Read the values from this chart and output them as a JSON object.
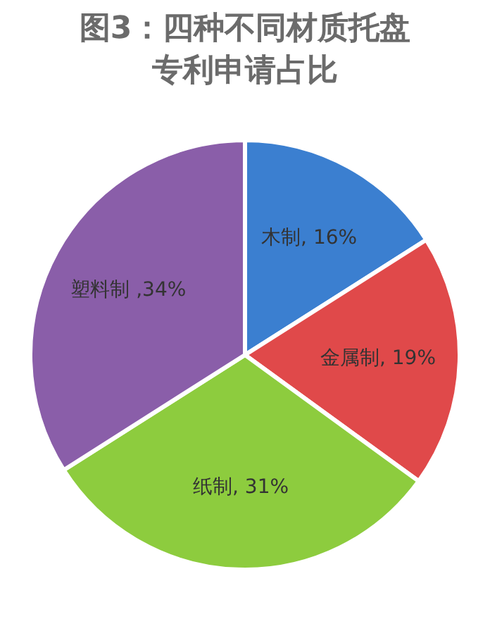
{
  "chart_data": {
    "type": "pie",
    "title": "图3：四种不同材质托盘专利申请占比",
    "categories": [
      "木制",
      "金属制",
      "纸制",
      "塑料制"
    ],
    "values": [
      16,
      19,
      31,
      34
    ],
    "colors": [
      "#3b7fd0",
      "#e0494a",
      "#8dcc3e",
      "#8a5ea9"
    ],
    "value_labels": [
      ", 16%",
      ", 19%",
      ", 31%",
      " ,34%"
    ],
    "legend": false
  }
}
